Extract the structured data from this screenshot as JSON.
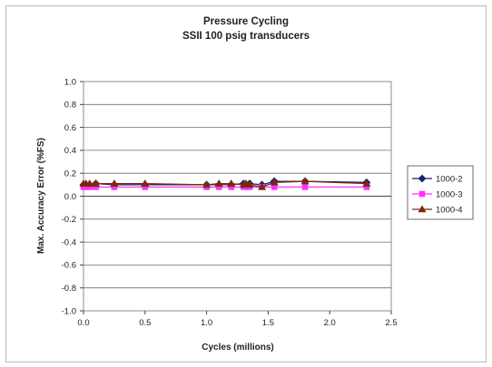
{
  "chart_data": {
    "type": "line",
    "title": [
      "Pressure Cycling",
      "SSII 100 psig transducers"
    ],
    "xlabel": "Cycles (millions)",
    "ylabel": "Max. Accuracy Error (%FS)",
    "xlim": [
      0,
      2.5
    ],
    "ylim": [
      -1.0,
      1.0
    ],
    "xticks": [
      "0.0",
      "0.5",
      "1.0",
      "1.5",
      "2.0",
      "2.5"
    ],
    "xtick_values": [
      0,
      0.5,
      1.0,
      1.5,
      2.0,
      2.5
    ],
    "yticks": [
      "1.0",
      "0.8",
      "0.6",
      "0.4",
      "0.2",
      "0.0",
      "-0.2",
      "-0.4",
      "-0.6",
      "-0.8",
      "-1.0"
    ],
    "ytick_values": [
      1.0,
      0.8,
      0.6,
      0.4,
      0.2,
      0.0,
      -0.2,
      -0.4,
      -0.6,
      -0.8,
      -1.0
    ],
    "grid": "horizontal",
    "legend_position": "right",
    "series": [
      {
        "name": "1000-2",
        "color": "#1b1f6e",
        "marker": "diamond",
        "x": [
          0,
          0.02,
          0.05,
          0.1,
          0.25,
          0.5,
          1.0,
          1.1,
          1.2,
          1.3,
          1.32,
          1.35,
          1.45,
          1.55,
          1.8,
          2.3
        ],
        "y": [
          0.1,
          0.1,
          0.1,
          0.11,
          0.1,
          0.1,
          0.1,
          0.1,
          0.1,
          0.11,
          0.1,
          0.11,
          0.1,
          0.13,
          0.13,
          0.12
        ]
      },
      {
        "name": "1000-3",
        "color": "#ff33ff",
        "marker": "square",
        "x": [
          0,
          0.02,
          0.05,
          0.1,
          0.25,
          0.5,
          1.0,
          1.1,
          1.2,
          1.3,
          1.32,
          1.35,
          1.45,
          1.55,
          1.8,
          2.3
        ],
        "y": [
          0.08,
          0.08,
          0.08,
          0.08,
          0.08,
          0.08,
          0.08,
          0.08,
          0.08,
          0.08,
          0.08,
          0.08,
          0.08,
          0.08,
          0.08,
          0.08
        ]
      },
      {
        "name": "1000-4",
        "color": "#7a2a0c",
        "marker": "triangle",
        "x": [
          0,
          0.02,
          0.05,
          0.1,
          0.25,
          0.5,
          1.0,
          1.1,
          1.2,
          1.3,
          1.32,
          1.35,
          1.45,
          1.55,
          1.8,
          2.3
        ],
        "y": [
          0.11,
          0.11,
          0.11,
          0.11,
          0.11,
          0.11,
          0.1,
          0.11,
          0.11,
          0.1,
          0.11,
          0.1,
          0.08,
          0.12,
          0.13,
          0.11
        ]
      }
    ]
  }
}
